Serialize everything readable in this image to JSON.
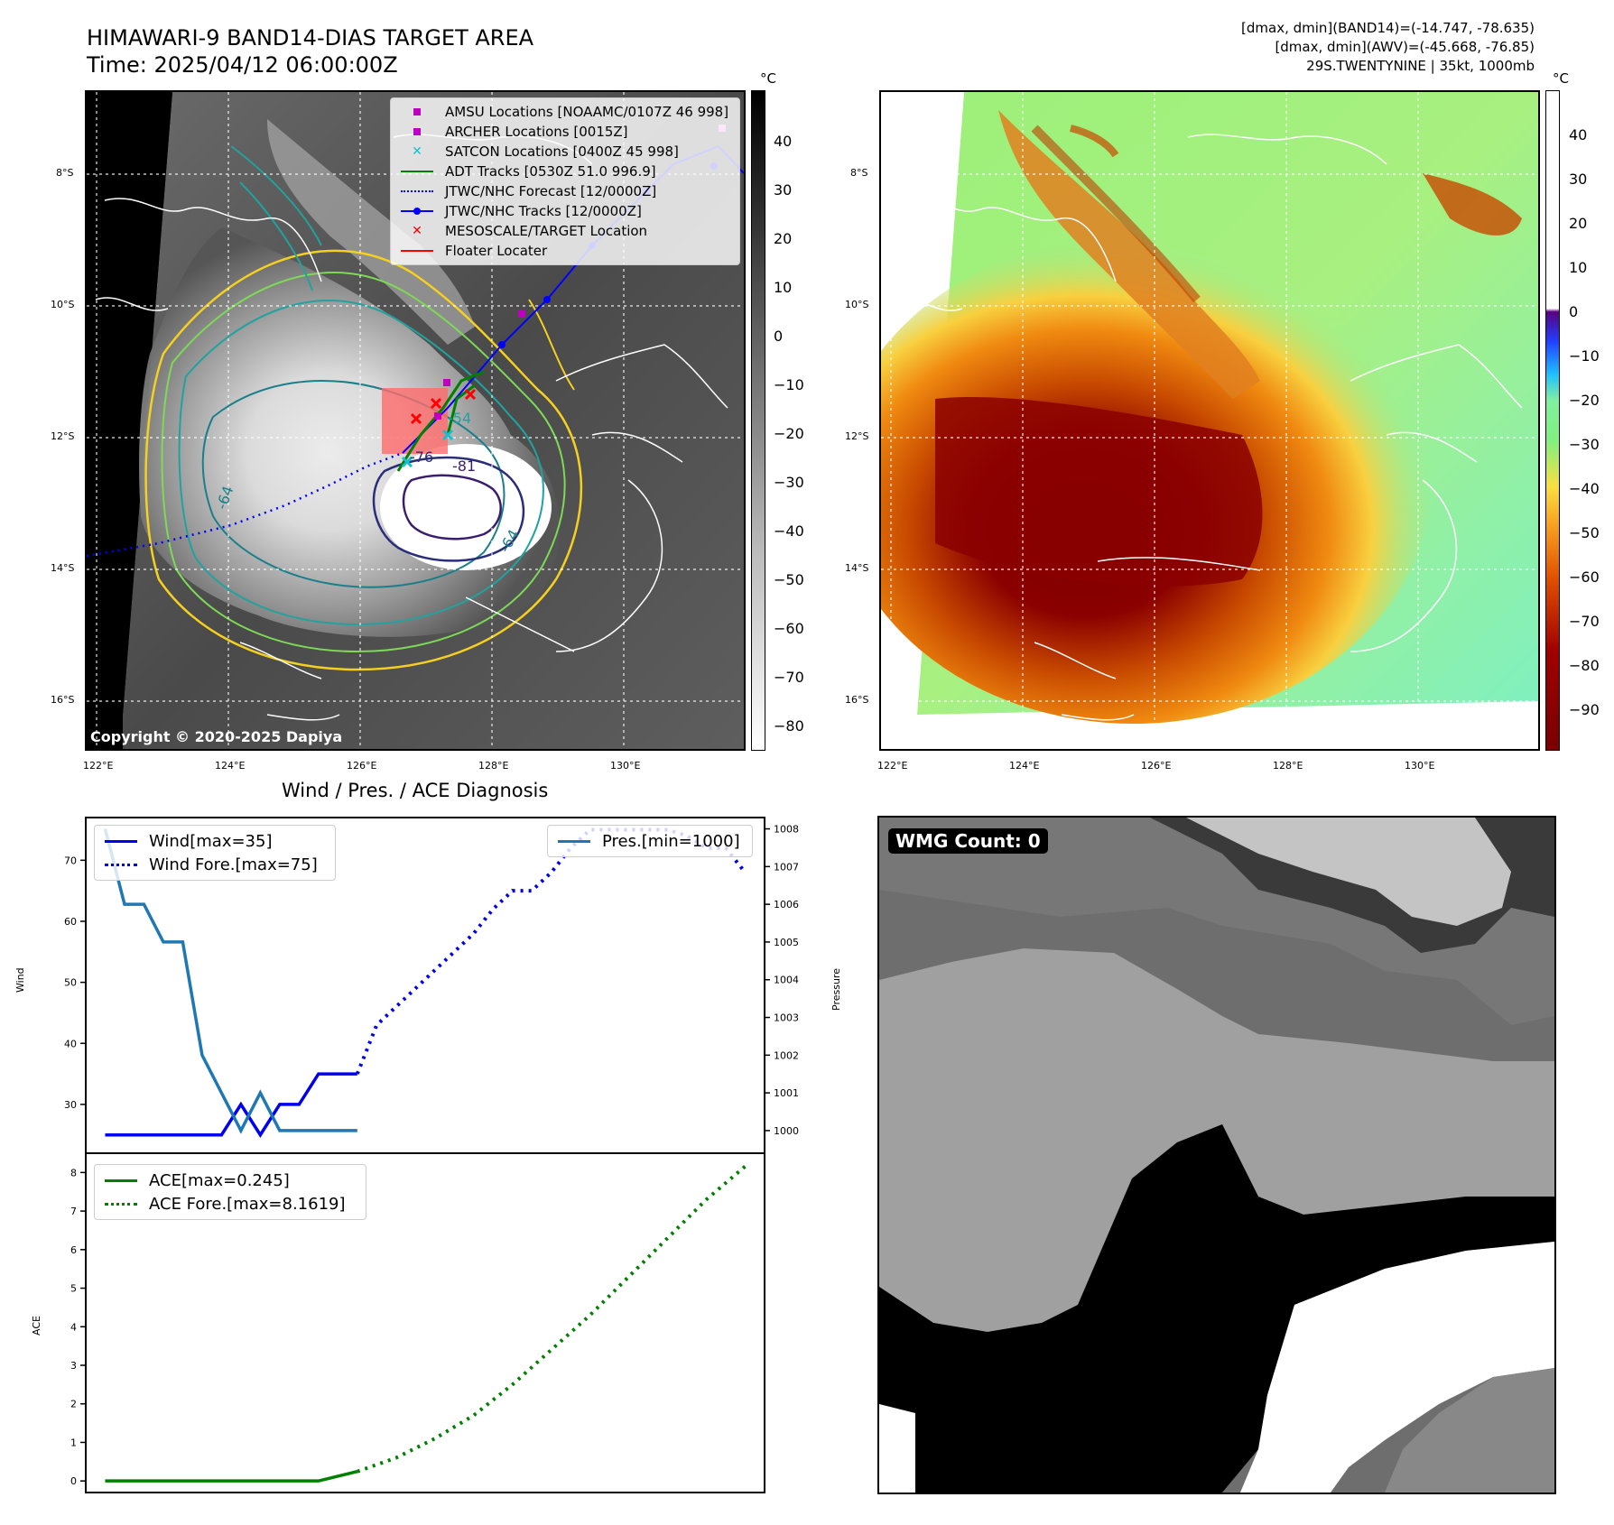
{
  "header": {
    "title_line1": "HIMAWARI-9 BAND14-DIAS TARGET AREA",
    "title_line2": "Time: 2025/04/12 06:00:00Z",
    "info_line1": "[dmax, dmin](BAND14)=(-14.747, -78.635)",
    "info_line2": "[dmax, dmin](AWV)=(-45.668, -76.85)",
    "info_line3": "29S.TWENTYNINE | 35kt, 1000mb"
  },
  "maps": {
    "lat_labels": [
      "8°S",
      "10°S",
      "12°S",
      "14°S",
      "16°S"
    ],
    "lon_labels": [
      "122°E",
      "124°E",
      "126°E",
      "128°E",
      "130°E"
    ],
    "copyright": "Copyright © 2020-2025 Dapiya",
    "contour_labels": [
      "-54",
      "-76",
      "-81",
      "-64",
      "-64"
    ],
    "colorbar_unit": "°C",
    "band14_colorbar_ticks": [
      "40",
      "30",
      "20",
      "10",
      "0",
      "−10",
      "−20",
      "−30",
      "−40",
      "−50",
      "−60",
      "−70",
      "−80"
    ],
    "awv_colorbar_ticks": [
      "40",
      "30",
      "20",
      "10",
      "0",
      "−10",
      "−20",
      "−30",
      "−40",
      "−50",
      "−60",
      "−70",
      "−80",
      "−90"
    ]
  },
  "map_legend": [
    {
      "label": "AMSU Locations [NOAAMC/0107Z 46 998]",
      "marker": "square",
      "color": "#c000c0"
    },
    {
      "label": "ARCHER Locations [0015Z]",
      "marker": "square",
      "color": "#c000c0"
    },
    {
      "label": "SATCON Locations [0400Z 45 998]",
      "marker": "x",
      "color": "#17becf"
    },
    {
      "label": "ADT Tracks [0530Z 51.0 996.9]",
      "marker": "line",
      "color": "#008000"
    },
    {
      "label": "JTWC/NHC Forecast [12/0000Z]",
      "marker": "dotted",
      "color": "#0000ff"
    },
    {
      "label": "JTWC/NHC Tracks [12/0000Z]",
      "marker": "line-dot",
      "color": "#0000ff"
    },
    {
      "label": "MESOSCALE/TARGET Location",
      "marker": "x",
      "color": "#ff0000"
    },
    {
      "label": "Floater Locater",
      "marker": "line",
      "color": "#ff0000"
    }
  ],
  "diag": {
    "title": "Wind / Pres. / ACE Diagnosis",
    "wind_axis_label": "Wind",
    "pressure_axis_label": "Pressure",
    "ace_axis_label": "ACE",
    "legend_wind": "Wind[max=35]",
    "legend_wind_fore": "Wind Fore.[max=75]",
    "legend_pres": "Pres.[min=1000]",
    "legend_ace": "ACE[max=0.245]",
    "legend_ace_fore": "ACE Fore.[max=8.1619]"
  },
  "wmg": {
    "label": "WMG Count: 0"
  },
  "chart_data": [
    {
      "type": "line",
      "title": "Wind / Pres. / ACE Diagnosis",
      "ylabel": "Wind",
      "ylim": [
        22,
        77
      ],
      "yticks": [
        "70",
        "60",
        "50",
        "40",
        "30"
      ],
      "series": [
        {
          "name": "Wind[max=35]",
          "style": "solid",
          "color": "#0000ee",
          "x": [
            0,
            1,
            2,
            3,
            4,
            5,
            6,
            7,
            8,
            9,
            10,
            11,
            12,
            13
          ],
          "values": [
            25,
            25,
            25,
            25,
            25,
            25,
            25,
            30,
            25,
            30,
            30,
            35,
            35,
            35
          ]
        },
        {
          "name": "Wind Fore.[max=75]",
          "style": "dotted",
          "color": "#0000ee",
          "x": [
            13,
            14,
            15,
            16,
            17,
            18,
            19,
            20,
            21,
            22,
            23,
            24,
            25,
            26,
            27,
            28,
            29,
            30,
            31,
            32,
            33
          ],
          "values": [
            35,
            43,
            46,
            49,
            52,
            55,
            58,
            62,
            65,
            65,
            68,
            72,
            75,
            75,
            75,
            75,
            75,
            74,
            72,
            72,
            68
          ]
        }
      ]
    },
    {
      "type": "line",
      "ylabel": "Pressure",
      "ylim": [
        999.4,
        1008.3
      ],
      "yticks": [
        "1008",
        "1007",
        "1006",
        "1005",
        "1004",
        "1003",
        "1002",
        "1001",
        "1000"
      ],
      "series": [
        {
          "name": "Pres.[min=1000]",
          "style": "solid",
          "color": "#1f77b4",
          "x": [
            0,
            1,
            2,
            3,
            4,
            5,
            6,
            7,
            8,
            9,
            10,
            11,
            12,
            13
          ],
          "values": [
            1008,
            1006,
            1006,
            1005,
            1005,
            1002,
            1001,
            1000,
            1001,
            1000,
            1000,
            1000,
            1000,
            1000
          ]
        }
      ]
    },
    {
      "type": "line",
      "ylabel": "ACE",
      "ylim": [
        -0.3,
        8.5
      ],
      "yticks": [
        "8",
        "7",
        "6",
        "5",
        "4",
        "3",
        "2",
        "1",
        "0"
      ],
      "series": [
        {
          "name": "ACE[max=0.245]",
          "style": "solid",
          "color": "#008000",
          "x": [
            0,
            11,
            13
          ],
          "values": [
            0,
            0,
            0.245
          ]
        },
        {
          "name": "ACE Fore.[max=8.1619]",
          "style": "dotted",
          "color": "#008000",
          "x": [
            13,
            15,
            17,
            19,
            21,
            23,
            25,
            27,
            29,
            31,
            33
          ],
          "values": [
            0.245,
            0.6,
            1.1,
            1.7,
            2.5,
            3.4,
            4.3,
            5.3,
            6.3,
            7.3,
            8.16
          ]
        }
      ]
    }
  ]
}
